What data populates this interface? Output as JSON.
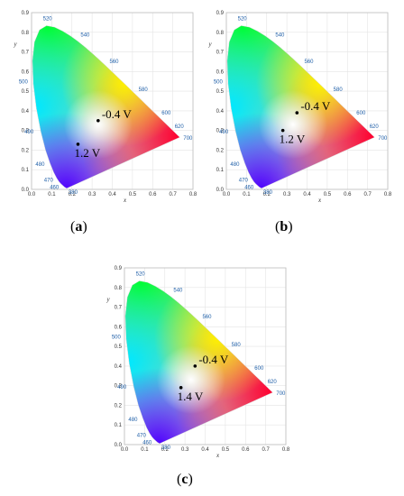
{
  "panels": [
    {
      "caption_open": "(",
      "caption_letter": "a",
      "caption_close": ")",
      "chart_data": {
        "type": "scatter",
        "xlabel": "x",
        "ylabel": "y",
        "xlim": [
          0.0,
          0.8
        ],
        "ylim": [
          0.0,
          0.9
        ],
        "x_ticks": [
          "0.0",
          "0.1",
          "0.2",
          "0.3",
          "0.4",
          "0.5",
          "0.6",
          "0.7",
          "0.8"
        ],
        "y_ticks": [
          "0.0",
          "0.1",
          "0.2",
          "0.3",
          "0.4",
          "0.5",
          "0.6",
          "0.7",
          "0.8",
          "0.9"
        ],
        "wavelength_labels": [
          "380",
          "460",
          "470",
          "480",
          "490",
          "500",
          "520",
          "540",
          "560",
          "580",
          "600",
          "620",
          "700"
        ],
        "points": [
          {
            "label": "-0.4 V",
            "x": 0.33,
            "y": 0.35
          },
          {
            "label": "1.2 V",
            "x": 0.23,
            "y": 0.23
          }
        ]
      }
    },
    {
      "caption_open": "(",
      "caption_letter": "b",
      "caption_close": ")",
      "chart_data": {
        "type": "scatter",
        "xlabel": "x",
        "ylabel": "y",
        "xlim": [
          0.0,
          0.8
        ],
        "ylim": [
          0.0,
          0.9
        ],
        "x_ticks": [
          "0.0",
          "0.1",
          "0.2",
          "0.3",
          "0.4",
          "0.5",
          "0.6",
          "0.7",
          "0.8"
        ],
        "y_ticks": [
          "0.0",
          "0.1",
          "0.2",
          "0.3",
          "0.4",
          "0.5",
          "0.6",
          "0.7",
          "0.8",
          "0.9"
        ],
        "wavelength_labels": [
          "380",
          "460",
          "470",
          "480",
          "490",
          "500",
          "520",
          "540",
          "560",
          "580",
          "600",
          "620",
          "700"
        ],
        "points": [
          {
            "label": "-0.4 V",
            "x": 0.35,
            "y": 0.39
          },
          {
            "label": "1.2 V",
            "x": 0.28,
            "y": 0.3
          }
        ]
      }
    },
    {
      "caption_open": "(",
      "caption_letter": "c",
      "caption_close": ")",
      "chart_data": {
        "type": "scatter",
        "xlabel": "x",
        "ylabel": "y",
        "xlim": [
          0.0,
          0.8
        ],
        "ylim": [
          0.0,
          0.9
        ],
        "x_ticks": [
          "0.0",
          "0.1",
          "0.2",
          "0.3",
          "0.4",
          "0.5",
          "0.6",
          "0.7",
          "0.8"
        ],
        "y_ticks": [
          "0.0",
          "0.1",
          "0.2",
          "0.3",
          "0.4",
          "0.5",
          "0.6",
          "0.7",
          "0.8",
          "0.9"
        ],
        "wavelength_labels": [
          "380",
          "460",
          "470",
          "480",
          "490",
          "500",
          "520",
          "540",
          "560",
          "580",
          "600",
          "620",
          "700"
        ],
        "points": [
          {
            "label": "-0.4 V",
            "x": 0.35,
            "y": 0.4
          },
          {
            "label": "1.4 V",
            "x": 0.28,
            "y": 0.29
          }
        ]
      }
    }
  ]
}
